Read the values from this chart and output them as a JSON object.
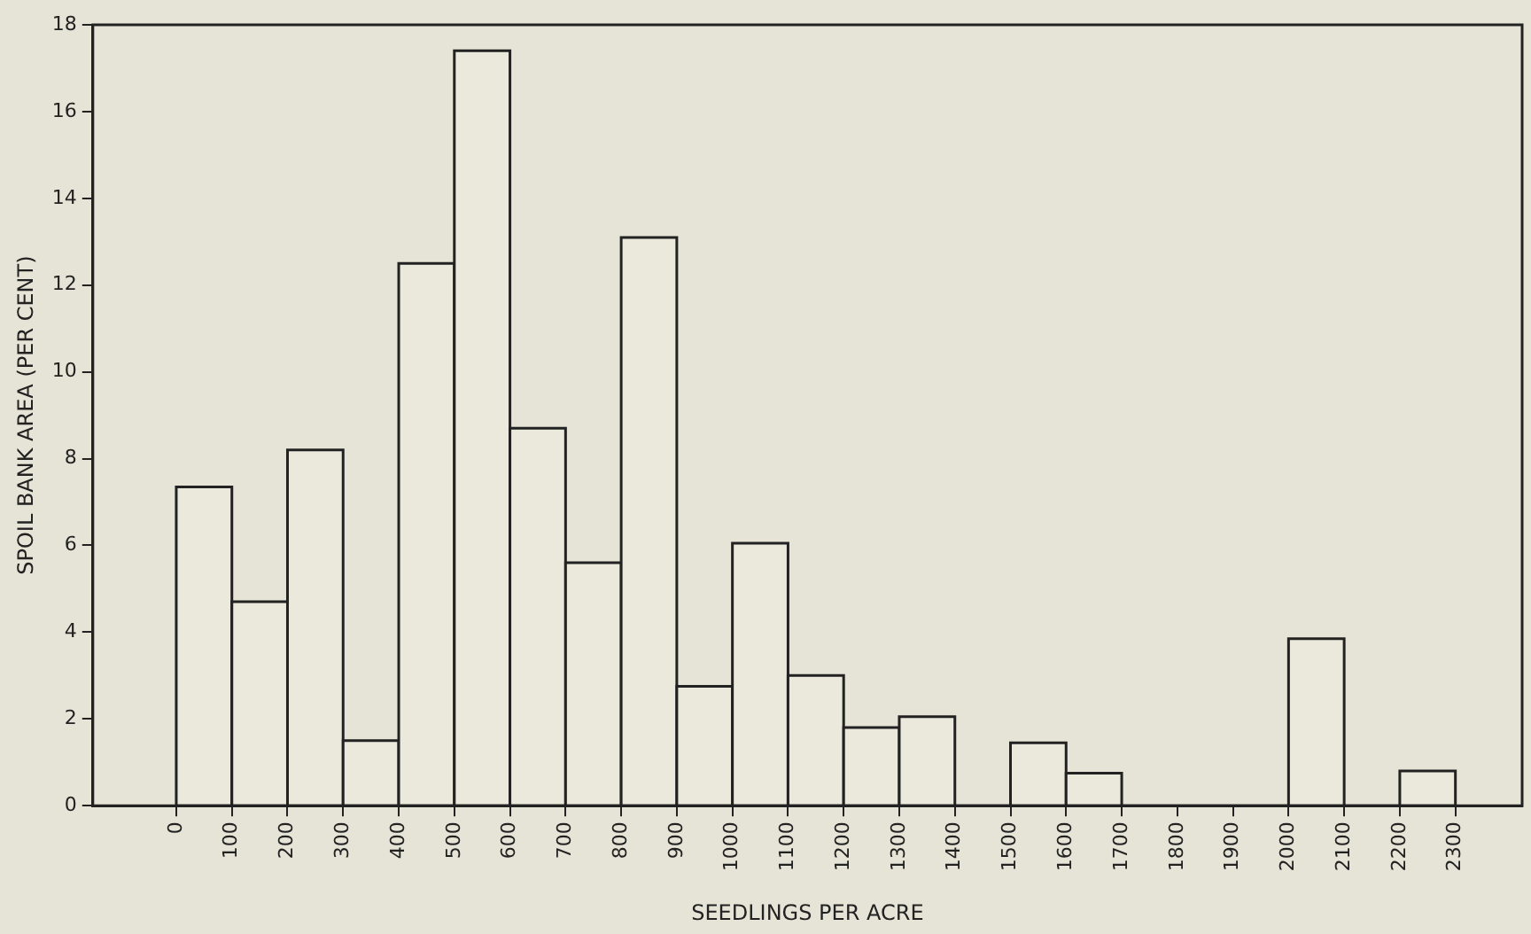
{
  "chart_data": {
    "type": "histogram",
    "xlabel": "SEEDLINGS PER ACRE",
    "ylabel": "SPOIL BANK AREA (PER CENT)",
    "bins": [
      0,
      100,
      200,
      300,
      400,
      500,
      600,
      700,
      800,
      900,
      1000,
      1100,
      1200,
      1300,
      1400,
      1500,
      1600,
      1700,
      1800,
      1900,
      2000,
      2100,
      2200,
      2300
    ],
    "values": [
      7.35,
      4.7,
      8.2,
      1.5,
      12.5,
      17.4,
      8.7,
      5.6,
      13.1,
      2.75,
      6.05,
      3.0,
      1.8,
      2.05,
      0,
      1.45,
      0.75,
      0,
      0,
      0,
      3.85,
      0,
      0.8
    ],
    "color": "#ebe9dc",
    "xlim": [
      -150,
      2420
    ],
    "xticks": [
      0,
      100,
      200,
      300,
      400,
      500,
      600,
      700,
      800,
      900,
      1000,
      1100,
      1200,
      1300,
      1400,
      1500,
      1600,
      1700,
      1800,
      1900,
      2000,
      2100,
      2200,
      2300
    ],
    "ylim": [
      0,
      18
    ],
    "yticks": [
      0,
      2,
      4,
      6,
      8,
      10,
      12,
      14,
      16,
      18
    ],
    "grid": false,
    "legend": false
  }
}
